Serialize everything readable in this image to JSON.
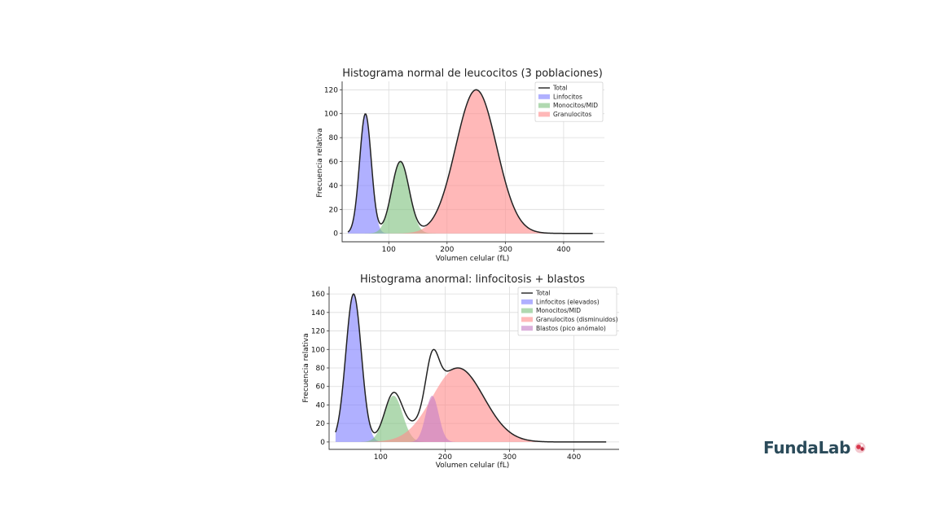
{
  "brand": {
    "name": "FundaLab"
  },
  "chart_data": [
    {
      "type": "area",
      "title": "Histograma normal de leucocitos (3 poblaciones)",
      "xlabel": "Volumen celular (fL)",
      "ylabel": "Frecuencia relativa",
      "xlim": [
        20,
        470
      ],
      "ylim": [
        -7,
        127
      ],
      "xticks": [
        100,
        200,
        300,
        400
      ],
      "yticks": [
        0,
        20,
        40,
        60,
        80,
        100,
        120
      ],
      "x_range": [
        30,
        450
      ],
      "legend_position": "top-right",
      "grid": true,
      "series": [
        {
          "name": "Total",
          "kind": "line",
          "color": "#222222"
        },
        {
          "name": "Linfocitos",
          "kind": "peak",
          "center": 60,
          "sigma": 10,
          "amplitude": 100,
          "color": "#8080ff"
        },
        {
          "name": "Monocitos/MID",
          "kind": "peak",
          "center": 120,
          "sigma": 15,
          "amplitude": 60,
          "color": "#7fc27f"
        },
        {
          "name": "Granulocitos",
          "kind": "peak",
          "center": 250,
          "sigma": 35,
          "amplitude": 120,
          "color": "#ff8c8c"
        }
      ]
    },
    {
      "type": "area",
      "title": "Histograma anormal: linfocitosis + blastos",
      "xlabel": "Volumen celular (fL)",
      "ylabel": "Frecuencia relativa",
      "xlim": [
        20,
        470
      ],
      "ylim": [
        -8,
        168
      ],
      "xticks": [
        100,
        200,
        300,
        400
      ],
      "yticks": [
        0,
        20,
        40,
        60,
        80,
        100,
        120,
        140,
        160
      ],
      "x_range": [
        30,
        450
      ],
      "legend_position": "top-right",
      "grid": true,
      "series": [
        {
          "name": "Total",
          "kind": "line",
          "color": "#222222"
        },
        {
          "name": "Linfocitos (elevados)",
          "kind": "peak",
          "center": 58,
          "sigma": 12,
          "amplitude": 160,
          "color": "#8080ff"
        },
        {
          "name": "Monocitos/MID",
          "kind": "peak",
          "center": 120,
          "sigma": 14,
          "amplitude": 50,
          "color": "#7fc27f"
        },
        {
          "name": "Granulocitos (disminuidos)",
          "kind": "peak",
          "center": 220,
          "sigma": 40,
          "amplitude": 80,
          "color": "#ff8c8c"
        },
        {
          "name": "Blastos (pico anómalo)",
          "kind": "peak",
          "center": 180,
          "sigma": 10,
          "amplitude": 50,
          "color": "#c77fc7"
        }
      ]
    }
  ]
}
